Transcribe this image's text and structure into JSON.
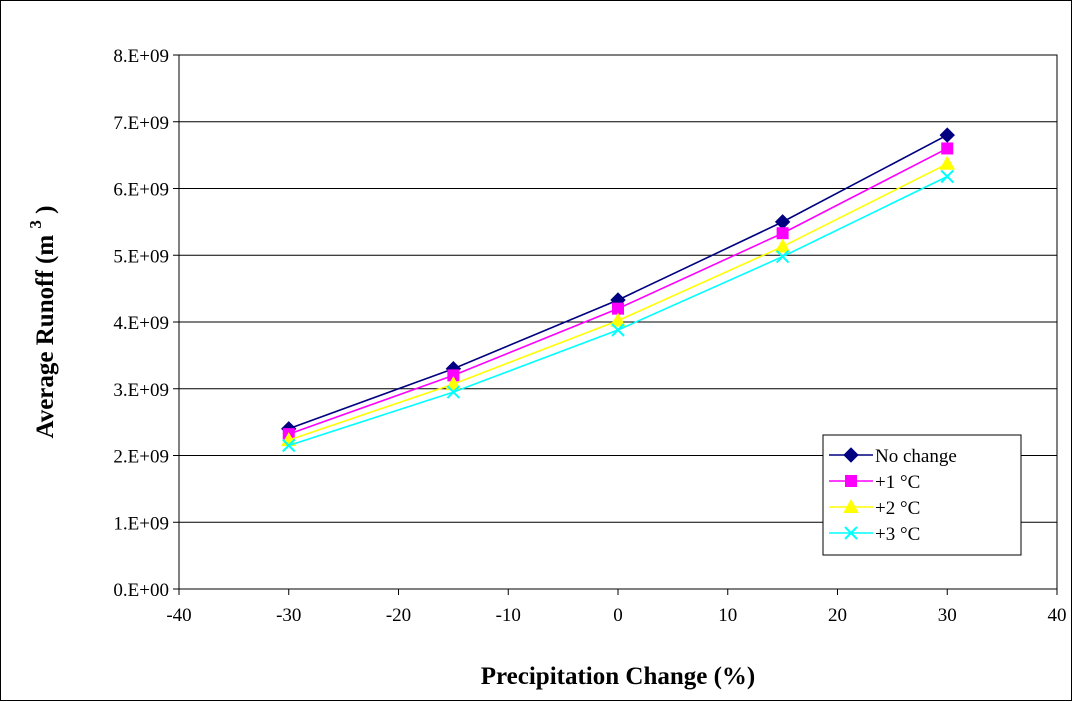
{
  "chart_data": {
    "type": "line",
    "title": "",
    "xlabel": "Precipitation Change (%)",
    "ylabel": "Average Runoff (m",
    "ylabel_superscript": "3",
    "ylabel_close": ")",
    "xlim": [
      -40,
      40
    ],
    "ylim": [
      0,
      8000000000
    ],
    "x_ticks": [
      -40,
      -30,
      -20,
      -10,
      0,
      10,
      20,
      30,
      40
    ],
    "x_tick_labels": [
      "-40",
      "-30",
      "-20",
      "-10",
      "0",
      "10",
      "20",
      "30",
      "40"
    ],
    "y_ticks": [
      0,
      1000000000,
      2000000000,
      3000000000,
      4000000000,
      5000000000,
      6000000000,
      7000000000,
      8000000000
    ],
    "y_tick_labels": [
      "0.E+00",
      "1.E+09",
      "2.E+09",
      "3.E+09",
      "4.E+09",
      "5.E+09",
      "6.E+09",
      "7.E+09",
      "8.E+09"
    ],
    "grid": "horizontal",
    "legend_position": "bottom-right",
    "x": [
      -30,
      -15,
      0,
      15,
      30
    ],
    "series": [
      {
        "name": "No change",
        "color": "#000080",
        "marker": "diamond",
        "values": [
          2400000000,
          3300000000,
          4330000000,
          5500000000,
          6800000000
        ]
      },
      {
        "name": "+1 °C",
        "color": "#FF00FF",
        "marker": "square",
        "values": [
          2320000000,
          3200000000,
          4200000000,
          5330000000,
          6600000000
        ]
      },
      {
        "name": "+2 °C",
        "color": "#FFFF00",
        "marker": "triangle",
        "values": [
          2230000000,
          3070000000,
          4020000000,
          5130000000,
          6370000000
        ]
      },
      {
        "name": "+3 °C",
        "color": "#00FFFF",
        "marker": "x",
        "values": [
          2150000000,
          2950000000,
          3880000000,
          4980000000,
          6180000000
        ]
      }
    ]
  }
}
